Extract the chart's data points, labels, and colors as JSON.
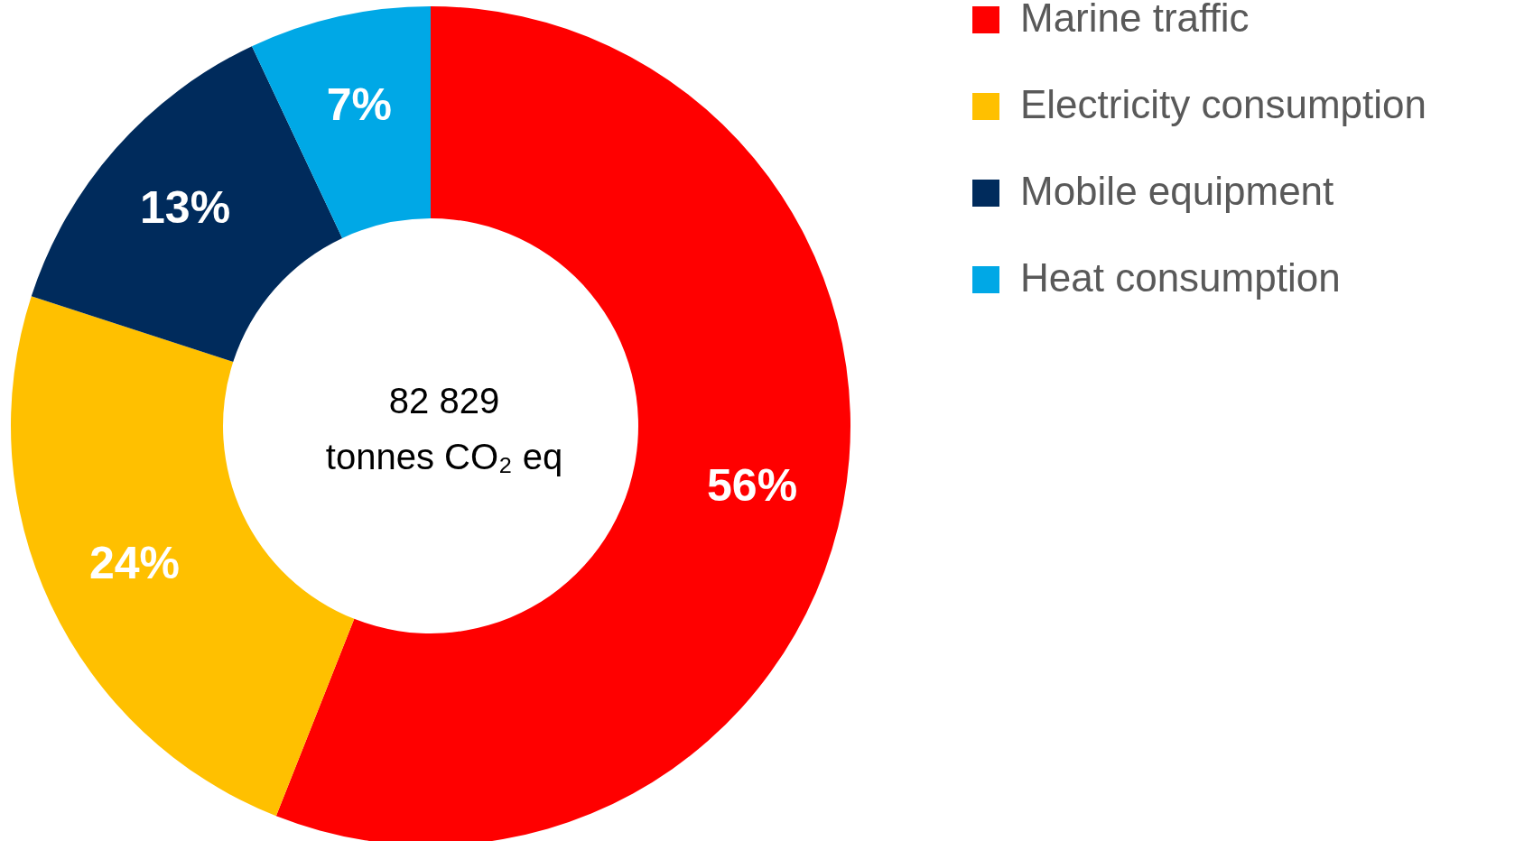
{
  "chart_data": {
    "type": "donut",
    "categories": [
      "Marine traffic",
      "Electricity consumption",
      "Mobile equipment",
      "Heat consumption"
    ],
    "values": [
      56,
      24,
      13,
      7
    ],
    "colors": [
      "#ff0000",
      "#ffc000",
      "#002b5c",
      "#00a8e6"
    ],
    "value_labels": [
      "56%",
      "24%",
      "13%",
      "7%"
    ],
    "annotations": [
      "82 829",
      "tonnes CO₂ eq"
    ],
    "legend": "right"
  }
}
